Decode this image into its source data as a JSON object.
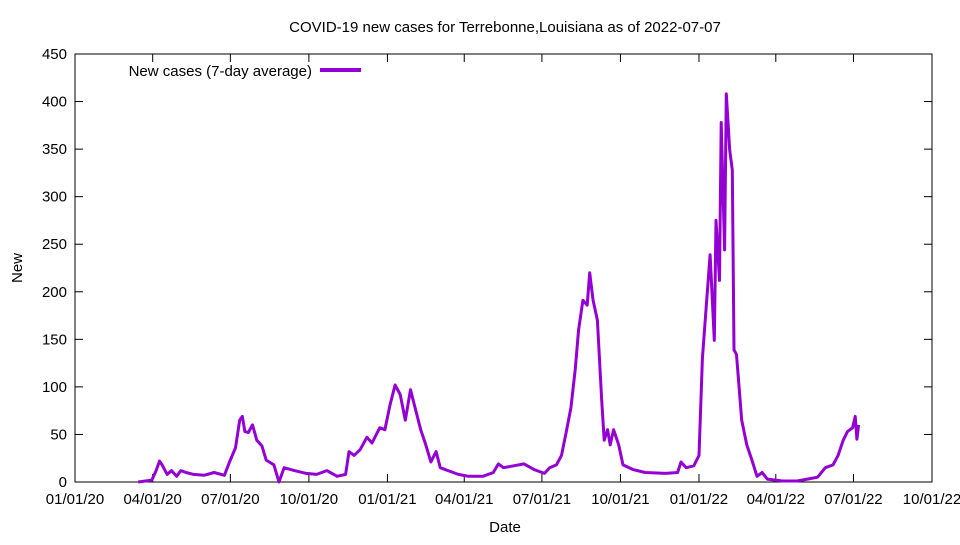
{
  "chart_data": {
    "type": "line",
    "title": "COVID-19 new cases for Terrebonne,Louisiana as of 2022-07-07",
    "xlabel": "Date",
    "ylabel": "New",
    "xlim": [
      "2020-01-01",
      "2022-10-01"
    ],
    "ylim": [
      0,
      450
    ],
    "x_ticks": [
      {
        "date": "2020-01-01",
        "label": "01/01/20"
      },
      {
        "date": "2020-04-01",
        "label": "04/01/20"
      },
      {
        "date": "2020-07-01",
        "label": "07/01/20"
      },
      {
        "date": "2020-10-01",
        "label": "10/01/20"
      },
      {
        "date": "2021-01-01",
        "label": "01/01/21"
      },
      {
        "date": "2021-04-01",
        "label": "04/01/21"
      },
      {
        "date": "2021-07-01",
        "label": "07/01/21"
      },
      {
        "date": "2021-10-01",
        "label": "10/01/21"
      },
      {
        "date": "2022-01-01",
        "label": "01/01/22"
      },
      {
        "date": "2022-04-01",
        "label": "04/01/22"
      },
      {
        "date": "2022-07-01",
        "label": "07/01/22"
      },
      {
        "date": "2022-10-01",
        "label": "10/01/22"
      }
    ],
    "y_ticks": [
      "0",
      "50",
      "100",
      "150",
      "200",
      "250",
      "300",
      "350",
      "400",
      "450"
    ],
    "grid": false,
    "legend_position": "top-left",
    "series": [
      {
        "name": "New cases (7-day average)",
        "color": "#9400d3",
        "points": [
          [
            "2020-03-15",
            0
          ],
          [
            "2020-03-31",
            2
          ],
          [
            "2020-04-05",
            12
          ],
          [
            "2020-04-09",
            22
          ],
          [
            "2020-04-12",
            18
          ],
          [
            "2020-04-18",
            8
          ],
          [
            "2020-04-23",
            12
          ],
          [
            "2020-04-29",
            6
          ],
          [
            "2020-05-04",
            12
          ],
          [
            "2020-05-10",
            10
          ],
          [
            "2020-05-19",
            8
          ],
          [
            "2020-05-31",
            7
          ],
          [
            "2020-06-12",
            10
          ],
          [
            "2020-06-24",
            7
          ],
          [
            "2020-06-30",
            21
          ],
          [
            "2020-07-07",
            36
          ],
          [
            "2020-07-12",
            65
          ],
          [
            "2020-07-15",
            69
          ],
          [
            "2020-07-18",
            53
          ],
          [
            "2020-07-22",
            52
          ],
          [
            "2020-07-27",
            60
          ],
          [
            "2020-08-01",
            44
          ],
          [
            "2020-08-07",
            38
          ],
          [
            "2020-08-12",
            23
          ],
          [
            "2020-08-21",
            18
          ],
          [
            "2020-08-27",
            0
          ],
          [
            "2020-09-02",
            15
          ],
          [
            "2020-09-14",
            12
          ],
          [
            "2020-09-28",
            9
          ],
          [
            "2020-10-10",
            8
          ],
          [
            "2020-10-22",
            12
          ],
          [
            "2020-11-03",
            6
          ],
          [
            "2020-11-13",
            8
          ],
          [
            "2020-11-17",
            32
          ],
          [
            "2020-11-23",
            28
          ],
          [
            "2020-11-30",
            34
          ],
          [
            "2020-12-08",
            47
          ],
          [
            "2020-12-14",
            41
          ],
          [
            "2020-12-23",
            57
          ],
          [
            "2020-12-29",
            55
          ],
          [
            "2021-01-04",
            81
          ],
          [
            "2021-01-10",
            102
          ],
          [
            "2021-01-16",
            92
          ],
          [
            "2021-01-22",
            65
          ],
          [
            "2021-01-28",
            97
          ],
          [
            "2021-02-03",
            76
          ],
          [
            "2021-02-09",
            55
          ],
          [
            "2021-02-15",
            39
          ],
          [
            "2021-02-21",
            21
          ],
          [
            "2021-02-27",
            32
          ],
          [
            "2021-03-04",
            15
          ],
          [
            "2021-03-13",
            12
          ],
          [
            "2021-03-25",
            8
          ],
          [
            "2021-04-06",
            6
          ],
          [
            "2021-04-23",
            6
          ],
          [
            "2021-05-05",
            10
          ],
          [
            "2021-05-11",
            19
          ],
          [
            "2021-05-17",
            15
          ],
          [
            "2021-05-29",
            17
          ],
          [
            "2021-06-10",
            19
          ],
          [
            "2021-06-22",
            13
          ],
          [
            "2021-07-04",
            9
          ],
          [
            "2021-07-10",
            15
          ],
          [
            "2021-07-18",
            18
          ],
          [
            "2021-07-24",
            28
          ],
          [
            "2021-07-30",
            55
          ],
          [
            "2021-08-04",
            78
          ],
          [
            "2021-08-09",
            118
          ],
          [
            "2021-08-13",
            160
          ],
          [
            "2021-08-18",
            191
          ],
          [
            "2021-08-23",
            186
          ],
          [
            "2021-08-26",
            220
          ],
          [
            "2021-08-30",
            191
          ],
          [
            "2021-09-04",
            170
          ],
          [
            "2021-09-09",
            86
          ],
          [
            "2021-09-12",
            44
          ],
          [
            "2021-09-16",
            55
          ],
          [
            "2021-09-19",
            39
          ],
          [
            "2021-09-23",
            55
          ],
          [
            "2021-09-29",
            39
          ],
          [
            "2021-10-04",
            18
          ],
          [
            "2021-10-16",
            13
          ],
          [
            "2021-10-30",
            10
          ],
          [
            "2021-11-23",
            9
          ],
          [
            "2021-12-07",
            10
          ],
          [
            "2021-12-11",
            21
          ],
          [
            "2021-12-17",
            15
          ],
          [
            "2021-12-26",
            17
          ],
          [
            "2022-01-01",
            28
          ],
          [
            "2022-01-05",
            130
          ],
          [
            "2022-01-10",
            191
          ],
          [
            "2022-01-14",
            239
          ],
          [
            "2022-01-19",
            149
          ],
          [
            "2022-01-21",
            275
          ],
          [
            "2022-01-25",
            212
          ],
          [
            "2022-01-27",
            378
          ],
          [
            "2022-01-31",
            244
          ],
          [
            "2022-02-02",
            408
          ],
          [
            "2022-02-06",
            349
          ],
          [
            "2022-02-09",
            328
          ],
          [
            "2022-02-11",
            139
          ],
          [
            "2022-02-14",
            134
          ],
          [
            "2022-02-20",
            65
          ],
          [
            "2022-02-26",
            39
          ],
          [
            "2022-03-04",
            23
          ],
          [
            "2022-03-10",
            6
          ],
          [
            "2022-03-16",
            10
          ],
          [
            "2022-03-22",
            3
          ],
          [
            "2022-04-09",
            1
          ],
          [
            "2022-04-26",
            1
          ],
          [
            "2022-05-08",
            3
          ],
          [
            "2022-05-20",
            5
          ],
          [
            "2022-05-29",
            15
          ],
          [
            "2022-06-07",
            18
          ],
          [
            "2022-06-13",
            28
          ],
          [
            "2022-06-19",
            44
          ],
          [
            "2022-06-24",
            53
          ],
          [
            "2022-06-30",
            57
          ],
          [
            "2022-07-03",
            69
          ],
          [
            "2022-07-05",
            45
          ],
          [
            "2022-07-07",
            60
          ]
        ]
      }
    ]
  }
}
